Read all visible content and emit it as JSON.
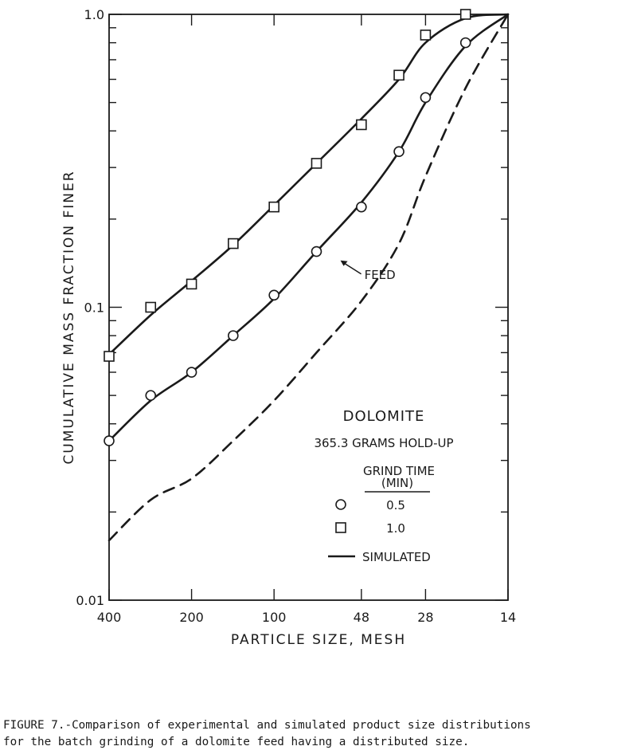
{
  "chart_data": {
    "type": "line",
    "title": "",
    "xlabel": "PARTICLE SIZE, MESH",
    "ylabel": "CUMULATIVE MASS FRACTION FINER",
    "x_scale": "log",
    "y_scale": "log",
    "xlim": [
      400,
      14
    ],
    "ylim": [
      0.01,
      1.0
    ],
    "x_ticks": [
      "400",
      "200",
      "100",
      "48",
      "28",
      "14"
    ],
    "y_tick_labels": [
      "0.01",
      "0.1",
      "1.0"
    ],
    "grid": false,
    "series": [
      {
        "name": "0.5",
        "kind": "experimental",
        "marker": "circle",
        "x": [
          400,
          282,
          200,
          141,
          100,
          70,
          48,
          35,
          28,
          20
        ],
        "y": [
          0.035,
          0.05,
          0.06,
          0.08,
          0.11,
          0.155,
          0.22,
          0.34,
          0.52,
          0.8
        ]
      },
      {
        "name": "1.0",
        "kind": "experimental",
        "marker": "square",
        "x": [
          400,
          282,
          200,
          141,
          100,
          70,
          48,
          35,
          28,
          20
        ],
        "y": [
          0.068,
          0.1,
          0.12,
          0.165,
          0.22,
          0.31,
          0.42,
          0.62,
          0.85,
          1.0
        ]
      },
      {
        "name": "",
        "kind": "simulated",
        "style": "solid",
        "x": [
          400,
          282,
          200,
          141,
          100,
          70,
          48,
          35,
          28,
          20,
          14
        ],
        "y": [
          0.035,
          0.048,
          0.06,
          0.08,
          0.107,
          0.155,
          0.228,
          0.34,
          0.5,
          0.78,
          1.0
        ]
      },
      {
        "name": "",
        "kind": "simulated",
        "style": "solid",
        "x": [
          400,
          282,
          200,
          141,
          100,
          70,
          48,
          35,
          28,
          20,
          14
        ],
        "y": [
          0.069,
          0.094,
          0.123,
          0.163,
          0.223,
          0.31,
          0.44,
          0.6,
          0.8,
          0.97,
          1.0
        ]
      },
      {
        "name": "FEED",
        "kind": "feed",
        "style": "dashed",
        "x": [
          400,
          282,
          200,
          141,
          100,
          70,
          48,
          35,
          28,
          20,
          14
        ],
        "y": [
          0.016,
          0.022,
          0.026,
          0.035,
          0.048,
          0.07,
          0.105,
          0.165,
          0.28,
          0.56,
          1.0
        ]
      }
    ],
    "annotations": [
      {
        "text": "FEED",
        "x": 58,
        "y": 0.14
      }
    ],
    "legend": {
      "title": "DOLOMITE",
      "subtitle": "365.3 GRAMS HOLD-UP",
      "header": "GRIND TIME",
      "units": "(MIN)",
      "items": [
        {
          "marker": "circle",
          "label": "0.5"
        },
        {
          "marker": "square",
          "label": "1.0"
        },
        {
          "marker": "line",
          "label": "SIMULATED"
        }
      ],
      "placement": "lower-right"
    }
  },
  "caption": {
    "line1": "FIGURE 7.-Comparison of experimental and simulated product size distributions",
    "line2": "for the batch grinding of a dolomite feed having a distributed size."
  },
  "colors": {
    "ink": "#1a1a1a",
    "background": "#ffffff"
  }
}
